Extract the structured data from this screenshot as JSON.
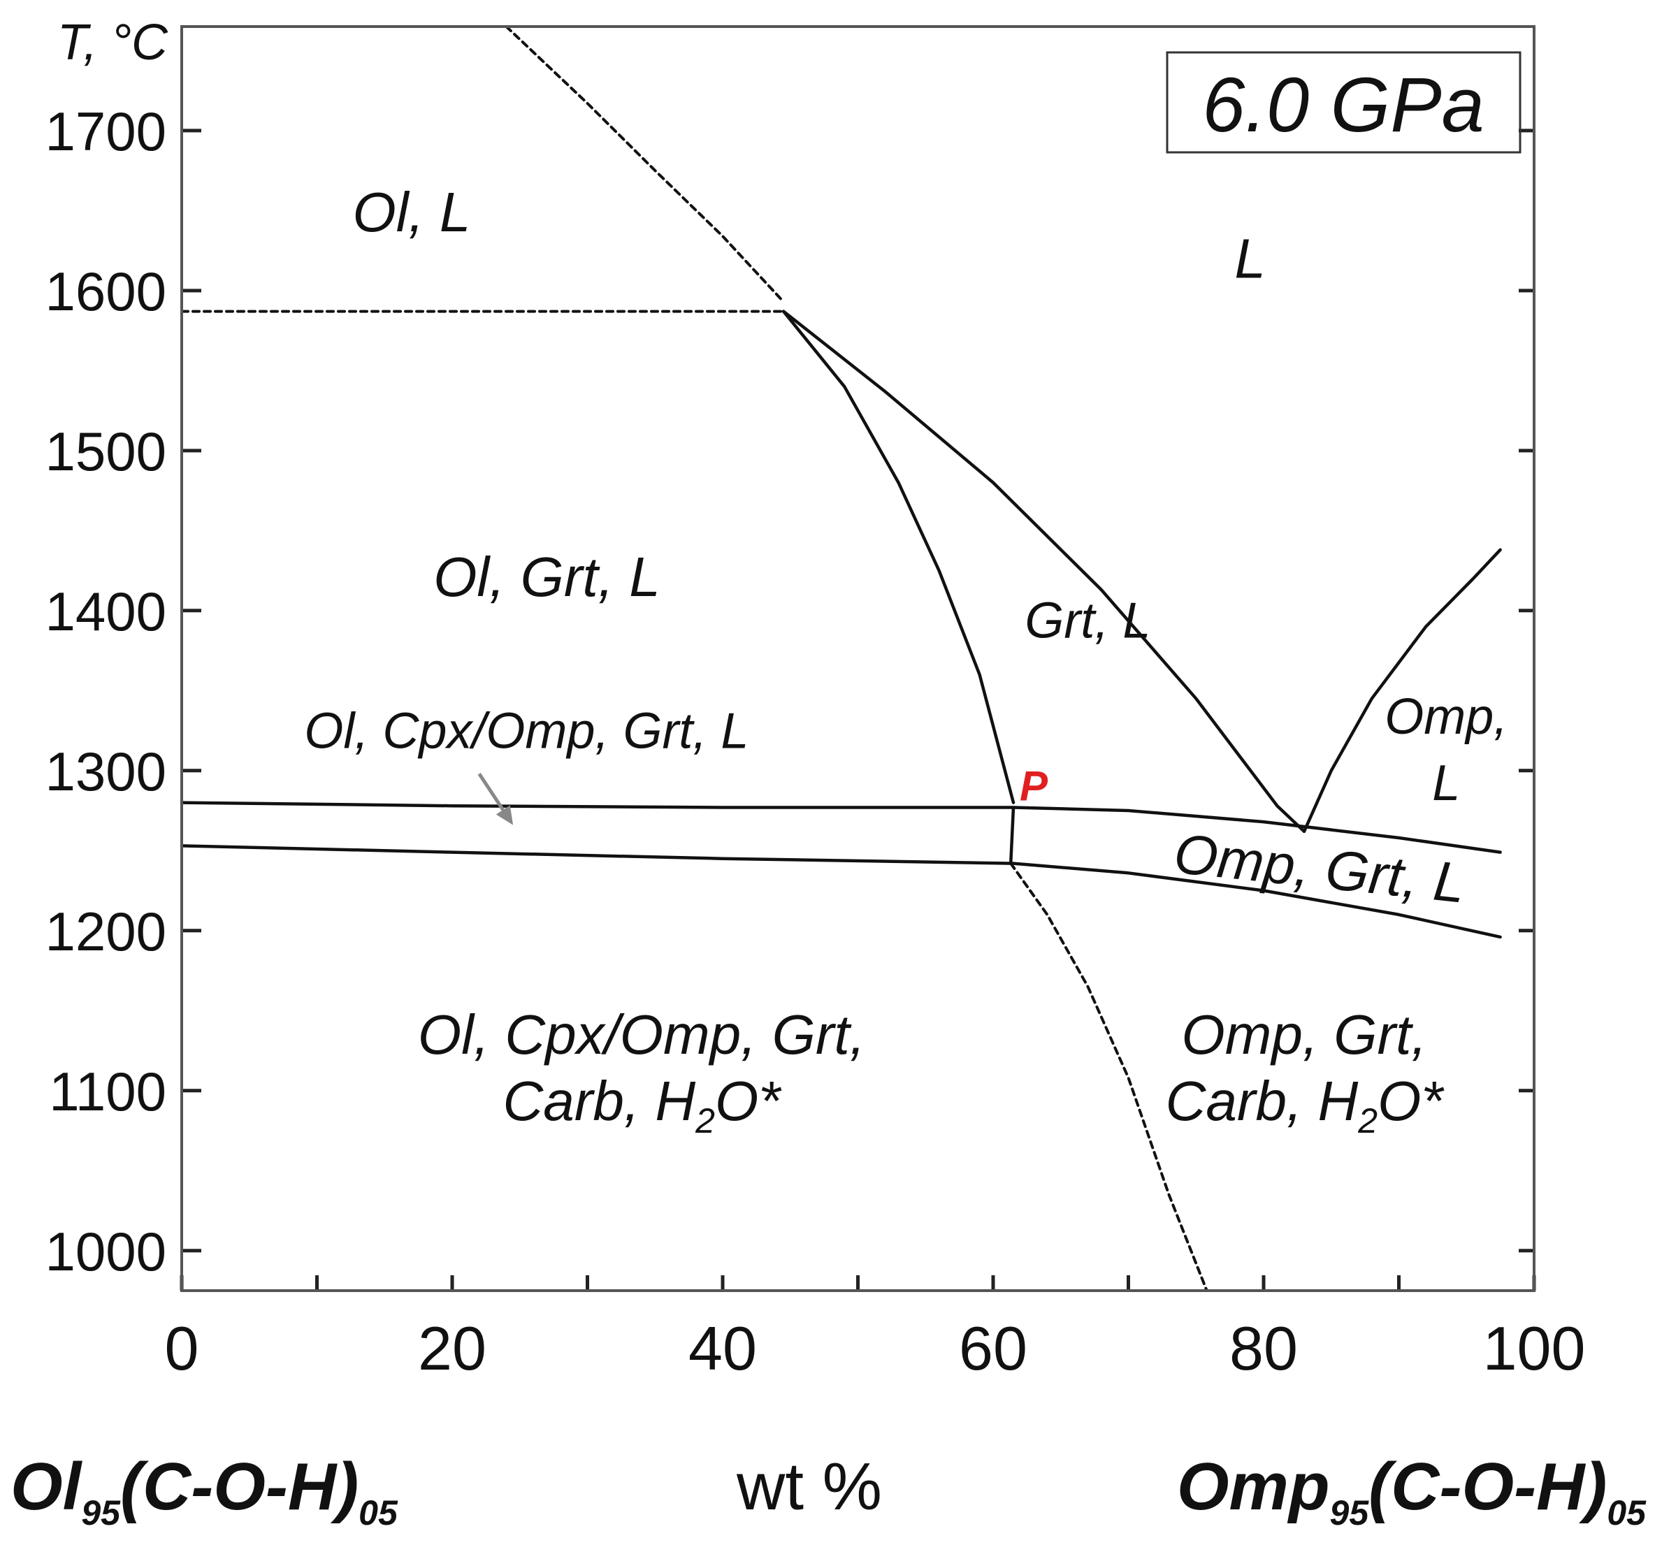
{
  "chart_data": {
    "type": "phase-diagram",
    "title": "6.0 GPa",
    "ylabel": "T, °C",
    "xlabel": "wt %",
    "x_end_left": {
      "main": "Ol",
      "sub1": "95",
      "mid": "(C-O-H)",
      "sub2": "05"
    },
    "x_end_right": {
      "main": "Omp",
      "sub1": "95",
      "mid": "(C-O-H)",
      "sub2": "05"
    },
    "xlim": [
      0,
      100
    ],
    "ylim": [
      975,
      1765
    ],
    "x_ticks": [
      0,
      20,
      40,
      60,
      80,
      100
    ],
    "x_minor_ticks": [
      10,
      30,
      50,
      70,
      90
    ],
    "y_ticks": [
      1000,
      1100,
      1200,
      1300,
      1400,
      1500,
      1600,
      1700
    ],
    "colors": {
      "axis": "#555555",
      "line": "#111111",
      "arrow": "#888888",
      "point": "#e02020"
    },
    "boundaries": [
      {
        "name": "liquidus-ol-dashed",
        "style": "dashed",
        "points": [
          [
            24,
            1765
          ],
          [
            30,
            1717
          ],
          [
            35,
            1675
          ],
          [
            40,
            1634
          ],
          [
            44.5,
            1593
          ]
        ]
      },
      {
        "name": "ol-out-dashed",
        "style": "dashed",
        "points": [
          [
            0,
            1587
          ],
          [
            44.5,
            1587
          ]
        ]
      },
      {
        "name": "ol-grt-boundary",
        "style": "solid",
        "points": [
          [
            44.5,
            1587
          ],
          [
            49,
            1540
          ],
          [
            53,
            1480
          ],
          [
            56,
            1425
          ],
          [
            59,
            1360
          ],
          [
            61.5,
            1280
          ]
        ]
      },
      {
        "name": "grt-liquidus",
        "style": "solid",
        "points": [
          [
            44.5,
            1587
          ],
          [
            52,
            1537
          ],
          [
            60,
            1480
          ],
          [
            68,
            1413
          ],
          [
            75,
            1345
          ],
          [
            81,
            1278
          ],
          [
            83,
            1262
          ]
        ]
      },
      {
        "name": "omp-liquidus",
        "style": "solid",
        "points": [
          [
            83,
            1262
          ],
          [
            85,
            1300
          ],
          [
            88,
            1345
          ],
          [
            92,
            1390
          ],
          [
            95.5,
            1420
          ],
          [
            97.5,
            1438
          ]
        ]
      },
      {
        "name": "solidus-upper",
        "style": "solid",
        "points": [
          [
            0,
            1280
          ],
          [
            20,
            1278
          ],
          [
            40,
            1277
          ],
          [
            61.5,
            1277
          ],
          [
            70,
            1275
          ],
          [
            80,
            1268
          ],
          [
            90,
            1258
          ],
          [
            97.5,
            1249
          ]
        ]
      },
      {
        "name": "solidus-lower",
        "style": "solid",
        "points": [
          [
            0,
            1253
          ],
          [
            20,
            1249
          ],
          [
            40,
            1245
          ],
          [
            61.5,
            1242
          ],
          [
            70,
            1236
          ],
          [
            80,
            1225
          ],
          [
            90,
            1210
          ],
          [
            97.5,
            1196
          ]
        ]
      },
      {
        "name": "peritectic-vertical",
        "style": "solid",
        "points": [
          [
            61.5,
            1277
          ],
          [
            61.3,
            1242
          ]
        ]
      },
      {
        "name": "cpx-out-dashed",
        "style": "dashed",
        "points": [
          [
            61.3,
            1242
          ],
          [
            64,
            1210
          ],
          [
            67,
            1165
          ],
          [
            70,
            1108
          ],
          [
            73,
            1035
          ],
          [
            75.8,
            975
          ]
        ]
      }
    ],
    "regions": [
      {
        "name": "ol-l",
        "lines": [
          "Ol, L"
        ],
        "x": 17,
        "y": 1637
      },
      {
        "name": "l",
        "lines": [
          "L"
        ],
        "x": 79,
        "y": 1608
      },
      {
        "name": "ol-grt-l",
        "lines": [
          "Ol, Grt, L"
        ],
        "x": 27,
        "y": 1409
      },
      {
        "name": "grt-l",
        "lines": [
          "Grt, L"
        ],
        "x": 67,
        "y": 1383
      },
      {
        "name": "omp-l",
        "lines": [
          "Omp,",
          "L"
        ],
        "x": 93.5,
        "y": 1323
      },
      {
        "name": "ol-cpx-omp-grt-l",
        "lines": [
          "Ol, Cpx/Omp, Grt, L"
        ],
        "x": 25.5,
        "y": 1314
      },
      {
        "name": "omp-grt-l",
        "lines": [
          "Omp, Grt, L"
        ],
        "x": 84,
        "y": 1227
      },
      {
        "name": "ol-cpx-omp-grt-carb-h2o",
        "lines": [
          "Ol, Cpx/Omp, Grt,",
          "Carb, H",
          "2",
          "O*"
        ],
        "x": 34,
        "y": 1123
      },
      {
        "name": "omp-grt-carb-h2o",
        "lines": [
          "Omp, Grt,",
          "Carb, H",
          "2",
          "O*"
        ],
        "x": 83,
        "y": 1123
      }
    ],
    "arrow": {
      "from": [
        22,
        1298
      ],
      "to": [
        24.5,
        1266
      ]
    },
    "point": {
      "label": "P",
      "x": 63,
      "y": 1290
    }
  }
}
